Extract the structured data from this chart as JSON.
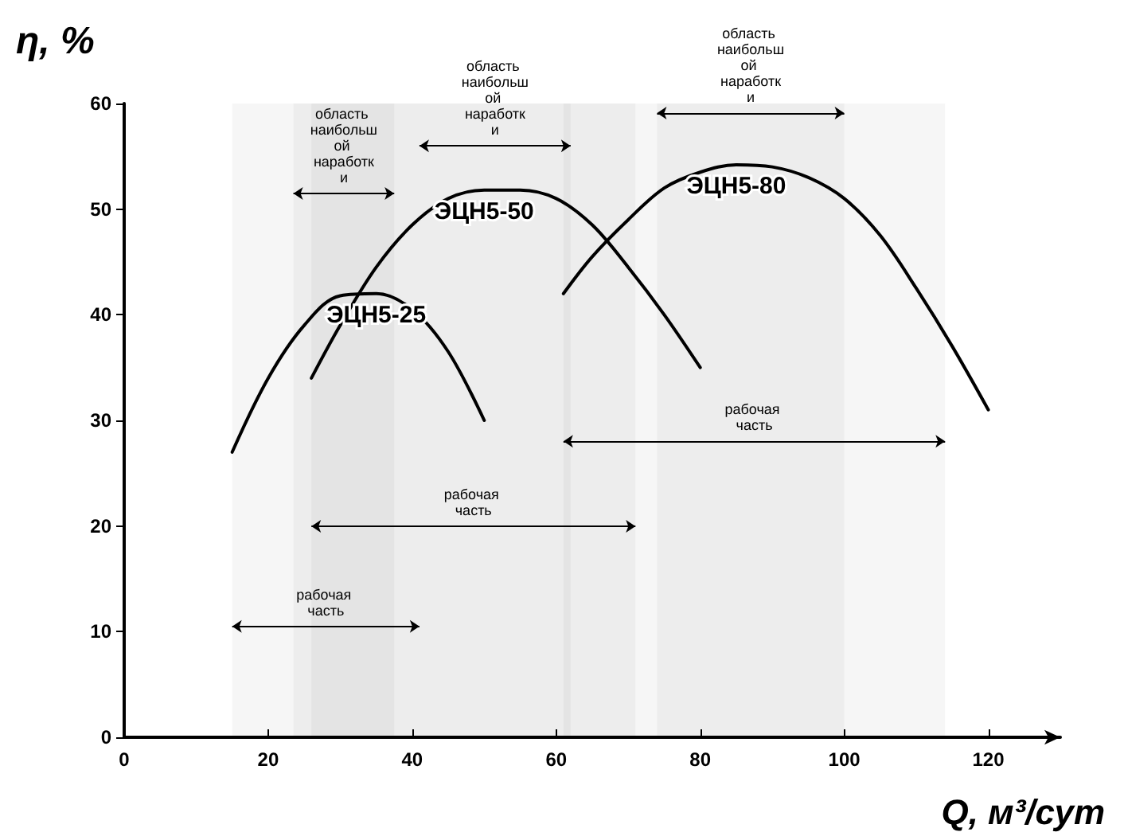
{
  "chart_data": {
    "type": "line",
    "xlabel": "Q, м³/сут",
    "ylabel": "η, %",
    "xlim": [
      0,
      130
    ],
    "xticks": [
      0,
      20,
      40,
      60,
      80,
      100,
      120
    ],
    "ylim": [
      0,
      60
    ],
    "yticks": [
      0,
      10,
      20,
      30,
      40,
      50,
      60
    ],
    "grid": false,
    "legend": false,
    "marker": "none",
    "line_style": "solid",
    "series": [
      {
        "name": "ЭЦН5-25",
        "color": "#000000",
        "x": [
          15,
          20,
          25,
          30,
          35,
          40,
          45,
          50
        ],
        "values": [
          27,
          34,
          39,
          41.8,
          42,
          40.5,
          36.5,
          30
        ]
      },
      {
        "name": "ЭЦН5-50",
        "color": "#000000",
        "x": [
          26,
          30,
          35,
          40,
          45,
          50,
          55,
          60,
          65,
          70,
          75,
          80
        ],
        "values": [
          34,
          39,
          44.5,
          48.5,
          51,
          51.8,
          51.8,
          51,
          48.5,
          44.5,
          40,
          35
        ]
      },
      {
        "name": "ЭЦН5-80",
        "color": "#000000",
        "x": [
          61,
          65,
          70,
          75,
          80,
          85,
          90,
          95,
          100,
          105,
          110,
          115,
          120
        ],
        "values": [
          42,
          45.5,
          49,
          52,
          53.5,
          54.2,
          54,
          53,
          51,
          47.5,
          42.5,
          37,
          31
        ]
      }
    ],
    "bands": [
      {
        "axis": "x",
        "from": 15,
        "to": 41,
        "label": "рабочая часть"
      },
      {
        "axis": "x",
        "from": 26,
        "to": 71,
        "label": "рабочая часть"
      },
      {
        "axis": "x",
        "from": 61,
        "to": 114,
        "label": "рабочая часть"
      },
      {
        "axis": "x",
        "from": 23.5,
        "to": 37.5,
        "label": "область наибольшой наработки"
      },
      {
        "axis": "x",
        "from": 41,
        "to": 62,
        "label": "область наибольшой наработки"
      },
      {
        "axis": "x",
        "from": 74,
        "to": 100,
        "label": "область наибольшой наработки"
      }
    ]
  }
}
